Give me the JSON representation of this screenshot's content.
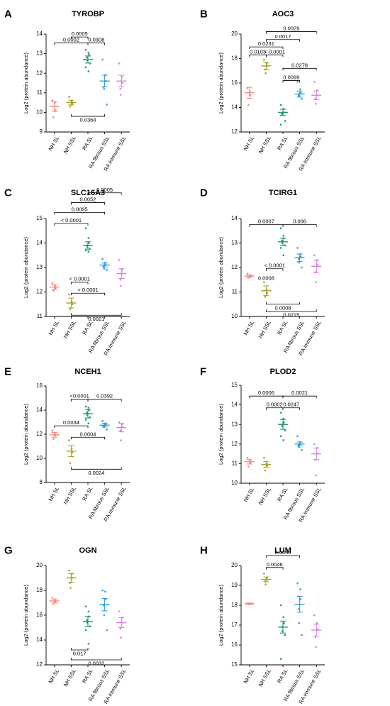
{
  "categories": [
    "NH SL",
    "NH SSL",
    "RA SL",
    "RA fibrous SSL",
    "RA immune SSL"
  ],
  "colors": [
    "#f28b82",
    "#a8a020",
    "#1a9a6e",
    "#2b9fd9",
    "#d97fe0"
  ],
  "ylabel": "Log2 (protein abundance)",
  "chart_data": [
    {
      "letter": "A",
      "title": "TYROBP",
      "type": "scatter",
      "ylim": [
        9,
        14
      ],
      "yticks": [
        9,
        10,
        11,
        12,
        13,
        14
      ],
      "series": [
        {
          "mean": 10.3,
          "sem": 0.25,
          "points": [
            10.6,
            10.5,
            10.1,
            9.75
          ]
        },
        {
          "mean": 10.5,
          "sem": 0.12,
          "points": [
            10.8,
            10.55,
            10.45,
            10.3
          ]
        },
        {
          "mean": 12.7,
          "sem": 0.18,
          "points": [
            13.2,
            13.05,
            12.95,
            12.8,
            12.65,
            12.5,
            12.3,
            12.1
          ]
        },
        {
          "mean": 11.6,
          "sem": 0.3,
          "points": [
            12.7,
            11.9,
            11.6,
            11.3,
            11.2,
            10.4
          ]
        },
        {
          "mean": 11.6,
          "sem": 0.3,
          "points": [
            12.5,
            11.8,
            11.5,
            11.2,
            10.9
          ]
        }
      ],
      "brackets": [
        {
          "from": 0,
          "to": 2,
          "y": 13.55,
          "label": "0.0002"
        },
        {
          "from": 1,
          "to": 2,
          "y": 13.85,
          "label": "0.0005"
        },
        {
          "from": 2,
          "to": 3,
          "y": 13.55,
          "label": "0.0308"
        },
        {
          "from": 1,
          "to": 3,
          "y": 9.8,
          "label": "0.0364",
          "below": true
        }
      ]
    },
    {
      "letter": "B",
      "title": "AOC3",
      "type": "scatter",
      "ylim": [
        12,
        20
      ],
      "yticks": [
        12,
        14,
        16,
        18,
        20
      ],
      "series": [
        {
          "mean": 15.2,
          "sem": 0.45,
          "points": [
            15.6,
            15.3,
            15.0,
            14.2
          ]
        },
        {
          "mean": 17.4,
          "sem": 0.3,
          "points": [
            17.9,
            17.6,
            17.4,
            17.1,
            16.8
          ]
        },
        {
          "mean": 13.6,
          "sem": 0.25,
          "points": [
            14.2,
            13.9,
            13.6,
            13.5,
            13.4,
            12.9,
            12.6
          ]
        },
        {
          "mean": 15.1,
          "sem": 0.25,
          "points": [
            16.1,
            15.5,
            15.2,
            15.0,
            14.9,
            14.7
          ]
        },
        {
          "mean": 15.0,
          "sem": 0.35,
          "points": [
            16.1,
            15.4,
            15.0,
            14.7,
            14.3
          ]
        }
      ],
      "brackets": [
        {
          "from": 0,
          "to": 1,
          "y": 18.3,
          "label": "0.0103"
        },
        {
          "from": 1,
          "to": 2,
          "y": 18.3,
          "label": "< 0.0001"
        },
        {
          "from": 0,
          "to": 2,
          "y": 18.95,
          "label": "0.0231"
        },
        {
          "from": 1,
          "to": 3,
          "y": 19.55,
          "label": "0.0017"
        },
        {
          "from": 1,
          "to": 4,
          "y": 20.2,
          "label": "0.0029"
        },
        {
          "from": 2,
          "to": 4,
          "y": 17.2,
          "label": "0.0278"
        },
        {
          "from": 2,
          "to": 3,
          "y": 16.2,
          "label": "0.0099"
        }
      ]
    },
    {
      "letter": "C",
      "title": "SLC16A3",
      "type": "scatter",
      "ylim": [
        11,
        15
      ],
      "yticks": [
        11,
        12,
        13,
        14,
        15
      ],
      "series": [
        {
          "mean": 12.2,
          "sem": 0.1,
          "points": [
            12.35,
            12.25,
            12.15,
            12.05
          ]
        },
        {
          "mean": 11.55,
          "sem": 0.2,
          "points": [
            11.9,
            11.6,
            11.5,
            11.3
          ]
        },
        {
          "mean": 13.9,
          "sem": 0.15,
          "points": [
            14.6,
            14.2,
            14.0,
            13.9,
            13.85,
            13.75,
            13.7,
            13.65
          ]
        },
        {
          "mean": 13.1,
          "sem": 0.08,
          "points": [
            13.35,
            13.2,
            13.1,
            13.05,
            12.95,
            12.9
          ]
        },
        {
          "mean": 12.75,
          "sem": 0.2,
          "points": [
            13.3,
            12.9,
            12.75,
            12.5,
            12.25
          ]
        }
      ],
      "brackets": [
        {
          "from": 0,
          "to": 2,
          "y": 14.8,
          "label": "< 0.0001"
        },
        {
          "from": 0,
          "to": 3,
          "y": 15.25,
          "label": "0.0095"
        },
        {
          "from": 1,
          "to": 3,
          "y": 15.65,
          "label": "0.0052"
        },
        {
          "from": 2,
          "to": 4,
          "y": 16.05,
          "label": "0.0005"
        },
        {
          "from": 1,
          "to": 2,
          "y": 12.4,
          "label": "< 0.0001"
        },
        {
          "from": 1,
          "to": 3,
          "y": 11.95,
          "label": "< 0.0001"
        },
        {
          "from": 1,
          "to": 4,
          "y": 11.05,
          "label": "0.0021",
          "below": true
        }
      ]
    },
    {
      "letter": "D",
      "title": "TCIRG1",
      "type": "scatter",
      "ylim": [
        10,
        14
      ],
      "yticks": [
        10,
        11,
        12,
        13,
        14
      ],
      "series": [
        {
          "mean": 11.65,
          "sem": 0.05,
          "points": [
            11.75,
            11.68,
            11.62,
            11.58
          ]
        },
        {
          "mean": 11.05,
          "sem": 0.2,
          "points": [
            11.4,
            11.1,
            10.95,
            10.8
          ]
        },
        {
          "mean": 13.05,
          "sem": 0.15,
          "points": [
            13.6,
            13.3,
            13.2,
            13.1,
            13.0,
            12.9,
            12.8,
            12.5
          ]
        },
        {
          "mean": 12.4,
          "sem": 0.15,
          "points": [
            12.8,
            12.55,
            12.45,
            12.35,
            12.2,
            12.0
          ]
        },
        {
          "mean": 12.05,
          "sem": 0.25,
          "points": [
            12.5,
            12.3,
            12.1,
            11.8,
            11.4
          ]
        }
      ],
      "brackets": [
        {
          "from": 0,
          "to": 2,
          "y": 13.75,
          "label": "0.0007"
        },
        {
          "from": 2,
          "to": 4,
          "y": 13.75,
          "label": "0.006"
        },
        {
          "from": 1,
          "to": 2,
          "y": 11.95,
          "label": "< 0.0001"
        },
        {
          "from": 1,
          "to": 3,
          "y": 10.5,
          "label": "0.0008",
          "below": true
        },
        {
          "from": 1,
          "to": 4,
          "y": 10.2,
          "label": "0.0215",
          "below": true
        }
      ],
      "loose_labels": [
        {
          "x": 1.0,
          "y": 11.55,
          "label": "0.0008"
        }
      ]
    },
    {
      "letter": "E",
      "title": "NCEH1",
      "type": "scatter",
      "ylim": [
        8,
        16
      ],
      "yticks": [
        8,
        10,
        12,
        14,
        16
      ],
      "series": [
        {
          "mean": 11.95,
          "sem": 0.2,
          "points": [
            12.3,
            12.0,
            11.9,
            11.6
          ]
        },
        {
          "mean": 10.6,
          "sem": 0.45,
          "points": [
            11.5,
            10.8,
            10.5,
            9.6
          ]
        },
        {
          "mean": 13.7,
          "sem": 0.35,
          "points": [
            14.3,
            14.2,
            14.0,
            13.8,
            13.6,
            13.4,
            13.2,
            12.9
          ]
        },
        {
          "mean": 12.75,
          "sem": 0.15,
          "points": [
            13.1,
            12.9,
            12.8,
            12.7,
            12.6,
            12.4
          ]
        },
        {
          "mean": 12.55,
          "sem": 0.35,
          "points": [
            13.0,
            12.8,
            12.6,
            12.3,
            11.5
          ]
        }
      ],
      "brackets": [
        {
          "from": 1,
          "to": 2,
          "y": 14.9,
          "label": "<0.0001"
        },
        {
          "from": 2,
          "to": 4,
          "y": 14.9,
          "label": "0.0392"
        },
        {
          "from": 0,
          "to": 2,
          "y": 12.7,
          "label": "0.0034"
        },
        {
          "from": 1,
          "to": 3,
          "y": 11.75,
          "label": "0.0004"
        },
        {
          "from": 1,
          "to": 4,
          "y": 9.1,
          "label": "0.0024",
          "below": true
        }
      ]
    },
    {
      "letter": "F",
      "title": "PLOD2",
      "type": "scatter",
      "ylim": [
        10,
        15
      ],
      "yticks": [
        10,
        11,
        12,
        13,
        14,
        15
      ],
      "series": [
        {
          "mean": 11.1,
          "sem": 0.12,
          "points": [
            11.3,
            11.15,
            11.05,
            10.85
          ]
        },
        {
          "mean": 10.95,
          "sem": 0.15,
          "points": [
            11.3,
            11.0,
            10.9,
            10.65
          ]
        },
        {
          "mean": 13.0,
          "sem": 0.25,
          "points": [
            13.6,
            13.3,
            13.1,
            13.0,
            12.9,
            12.7,
            12.4,
            12.2
          ]
        },
        {
          "mean": 12.0,
          "sem": 0.1,
          "points": [
            12.4,
            12.1,
            12.0,
            11.95,
            11.85,
            11.7
          ]
        },
        {
          "mean": 11.5,
          "sem": 0.3,
          "points": [
            12.0,
            11.8,
            11.5,
            11.2,
            10.4
          ]
        }
      ],
      "brackets": [
        {
          "from": 0,
          "to": 2,
          "y": 14.45,
          "label": "0.0006"
        },
        {
          "from": 2,
          "to": 4,
          "y": 14.45,
          "label": "0.0021"
        },
        {
          "from": 1,
          "to": 2,
          "y": 13.85,
          "label": "0.0002"
        },
        {
          "from": 2,
          "to": 3,
          "y": 13.85,
          "label": "0.0247"
        }
      ]
    },
    {
      "letter": "G",
      "title": "OGN",
      "type": "scatter",
      "ylim": [
        12,
        20
      ],
      "yticks": [
        12,
        14,
        16,
        18,
        20
      ],
      "series": [
        {
          "mean": 17.15,
          "sem": 0.15,
          "points": [
            17.4,
            17.2,
            17.1,
            16.9
          ]
        },
        {
          "mean": 19.0,
          "sem": 0.35,
          "points": [
            19.6,
            19.3,
            19.0,
            18.6,
            18.2
          ]
        },
        {
          "mean": 15.5,
          "sem": 0.4,
          "points": [
            16.7,
            16.3,
            15.9,
            15.6,
            15.4,
            15.1,
            14.8,
            13.7
          ]
        },
        {
          "mean": 16.85,
          "sem": 0.5,
          "points": [
            18.0,
            17.9,
            17.3,
            16.8,
            16.0,
            14.8
          ]
        },
        {
          "mean": 15.4,
          "sem": 0.4,
          "points": [
            16.3,
            15.8,
            15.4,
            14.9,
            14.2
          ]
        }
      ],
      "brackets": [
        {
          "from": 1,
          "to": 2,
          "y": 13.2,
          "label": "0.017",
          "below": true
        },
        {
          "from": 1,
          "to": 4,
          "y": 12.4,
          "label": "0.0032",
          "below": true
        }
      ]
    },
    {
      "letter": "H",
      "title": "LUM",
      "type": "scatter",
      "ylim": [
        15,
        20
      ],
      "yticks": [
        15,
        16,
        17,
        18,
        19,
        20
      ],
      "series": [
        {
          "mean": 18.08,
          "sem": 0.03,
          "points": [
            18.1,
            18.08,
            18.07,
            18.05
          ]
        },
        {
          "mean": 19.3,
          "sem": 0.12,
          "points": [
            19.6,
            19.4,
            19.3,
            19.2,
            19.05
          ]
        },
        {
          "mean": 16.9,
          "sem": 0.3,
          "points": [
            18.0,
            17.4,
            17.1,
            16.9,
            16.7,
            16.5,
            15.3
          ]
        },
        {
          "mean": 18.05,
          "sem": 0.4,
          "points": [
            19.1,
            18.8,
            18.3,
            17.8,
            17.1,
            16.5
          ]
        },
        {
          "mean": 16.75,
          "sem": 0.3,
          "points": [
            17.5,
            17.1,
            16.8,
            16.4,
            15.9
          ]
        }
      ],
      "brackets": [
        {
          "from": 1,
          "to": 2,
          "y": 19.9,
          "label": "0.0046"
        },
        {
          "from": 1,
          "to": 3,
          "y": 20.5,
          "label": "0.0056"
        }
      ]
    }
  ]
}
